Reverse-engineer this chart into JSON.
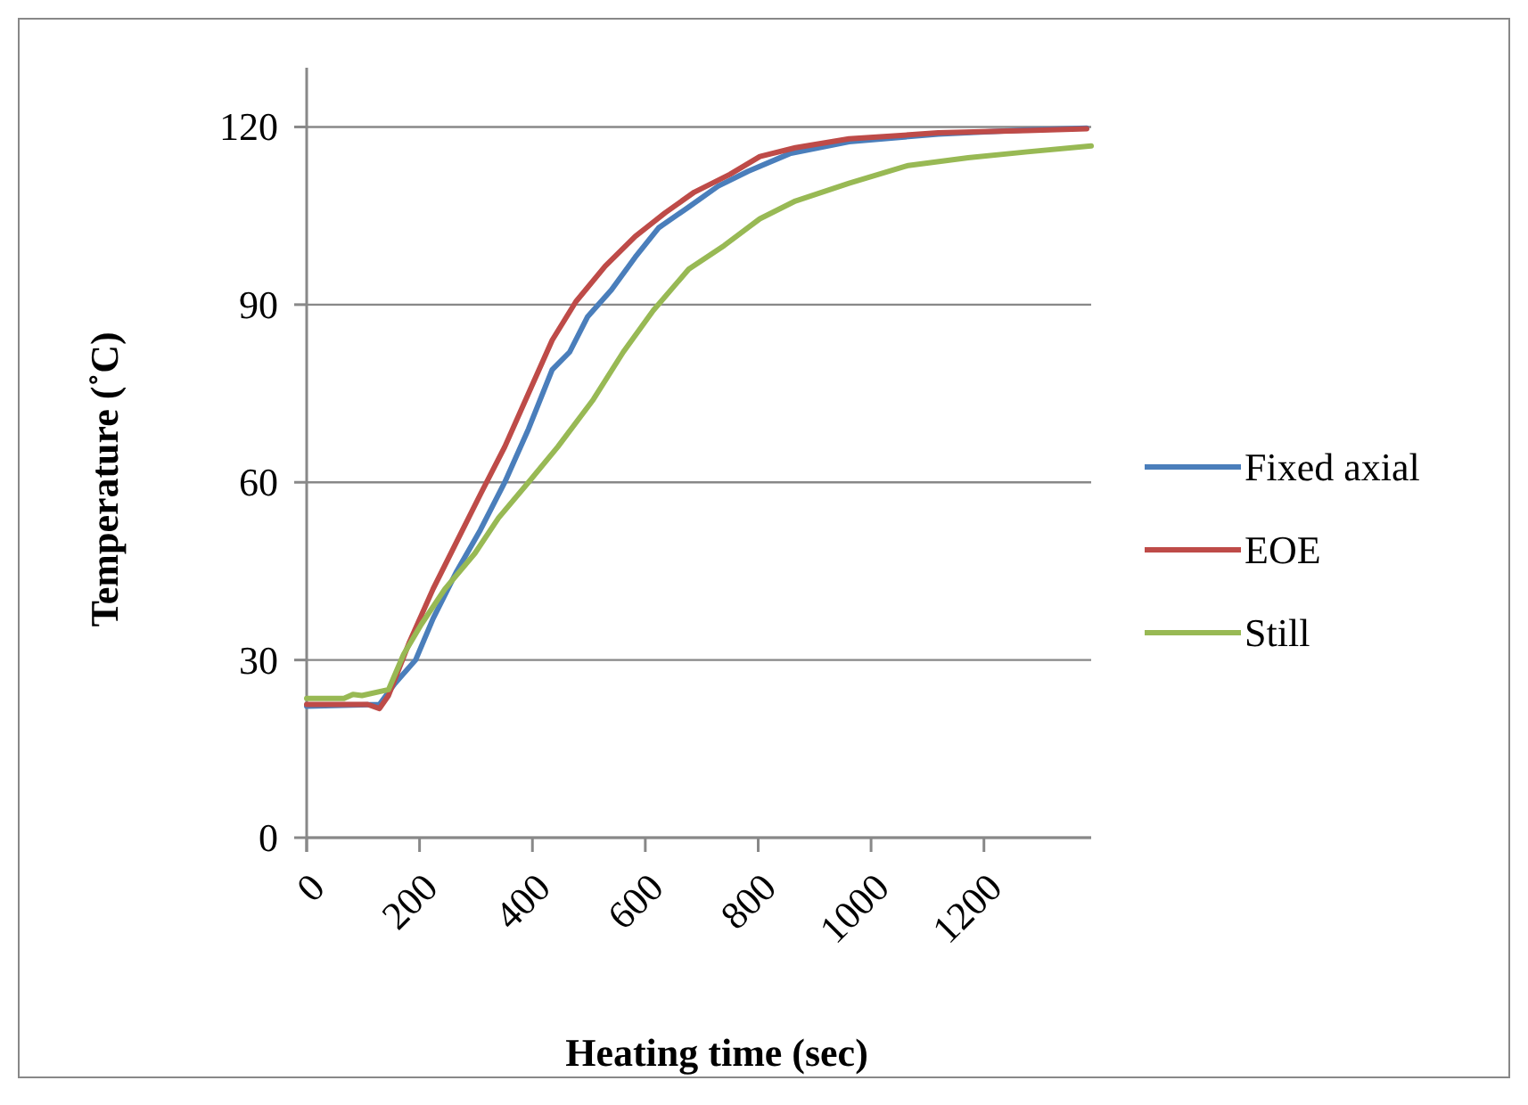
{
  "chart_data": {
    "type": "line",
    "xlabel": "Heating time (sec)",
    "ylabel": "Temperature (˚C)",
    "xlim": [
      0,
      1390
    ],
    "ylim": [
      0,
      130
    ],
    "xticks": [
      0,
      200,
      400,
      600,
      800,
      1000,
      1200
    ],
    "yticks": [
      0,
      30,
      60,
      90,
      120
    ],
    "grid": "y",
    "legend": "right",
    "marker": "none",
    "line_style": "solid",
    "series": [
      {
        "name": "Fixed axial",
        "color": "#4a7ebb",
        "x": [
          0,
          129,
          156,
          193,
          224,
          266,
          308,
          351,
          393,
          435,
          466,
          498,
          540,
          582,
          624,
          677,
          729,
          782,
          856,
          961,
          1119,
          1277,
          1382
        ],
        "values": [
          22.2,
          22.5,
          26,
          30,
          37,
          45,
          52,
          60,
          69,
          79,
          82,
          88,
          92.5,
          98,
          103,
          106.5,
          110,
          112.5,
          115.5,
          117.5,
          118.8,
          119.5,
          119.8
        ]
      },
      {
        "name": "EOE",
        "color": "#be4b48",
        "x": [
          0,
          108,
          129,
          145,
          182,
          224,
          266,
          308,
          351,
          393,
          435,
          477,
          529,
          582,
          635,
          687,
          750,
          803,
          866,
          961,
          1119,
          1277,
          1382
        ],
        "values": [
          22.5,
          22.5,
          21.8,
          24,
          33,
          42,
          50,
          58,
          66,
          75,
          84,
          90.5,
          96.5,
          101.5,
          105.5,
          109,
          112,
          115,
          116.5,
          118,
          119,
          119.4,
          119.7
        ]
      },
      {
        "name": "Still",
        "color": "#98b954",
        "x": [
          0,
          66,
          82,
          98,
          145,
          172,
          203,
          245,
          298,
          340,
          393,
          445,
          508,
          561,
          614,
          677,
          740,
          803,
          866,
          961,
          1066,
          1172,
          1277,
          1390
        ],
        "values": [
          23.5,
          23.5,
          24.2,
          24,
          25,
          31,
          36,
          42,
          48,
          54,
          60,
          66,
          74,
          82,
          89,
          96,
          100,
          104.5,
          107.5,
          110.5,
          113.5,
          114.8,
          115.8,
          116.8
        ]
      }
    ]
  }
}
